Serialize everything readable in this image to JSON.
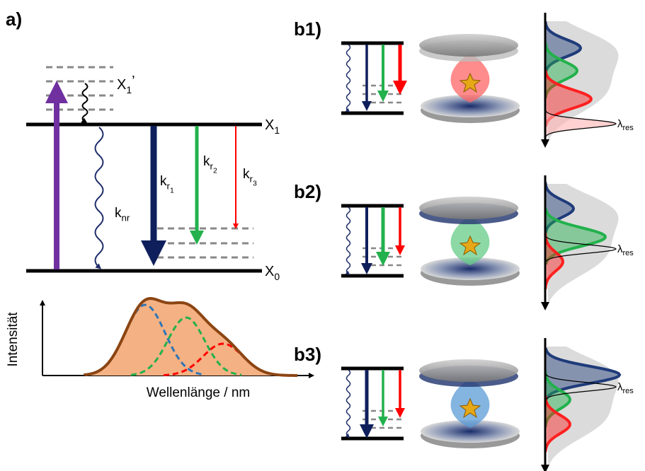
{
  "panel_a": {
    "label": "a)",
    "levels": {
      "x1_prime": {
        "base": "X",
        "sub": "1",
        "sup": "’"
      },
      "x1": {
        "base": "X",
        "sub": "1"
      },
      "x0": {
        "base": "X",
        "sub": "0"
      }
    },
    "rates": {
      "k_nr": {
        "base": "k",
        "sub": "nr"
      },
      "k_r1": {
        "base": "k",
        "sub": "r",
        "subsub": "1"
      },
      "k_r2": {
        "base": "k",
        "sub": "r",
        "subsub": "2"
      },
      "k_r3": {
        "base": "k",
        "sub": "r",
        "subsub": "3"
      }
    },
    "spectrum": {
      "y_label": "Intensität",
      "x_label": "Wellenlänge / nm"
    }
  },
  "panels_b": [
    {
      "label": "b1)",
      "resonance": {
        "base": "λ",
        "sub": "res"
      }
    },
    {
      "label": "b2)",
      "resonance": {
        "base": "λ",
        "sub": "res"
      }
    },
    {
      "label": "b3)",
      "resonance": {
        "base": "λ",
        "sub": "res"
      }
    }
  ]
}
